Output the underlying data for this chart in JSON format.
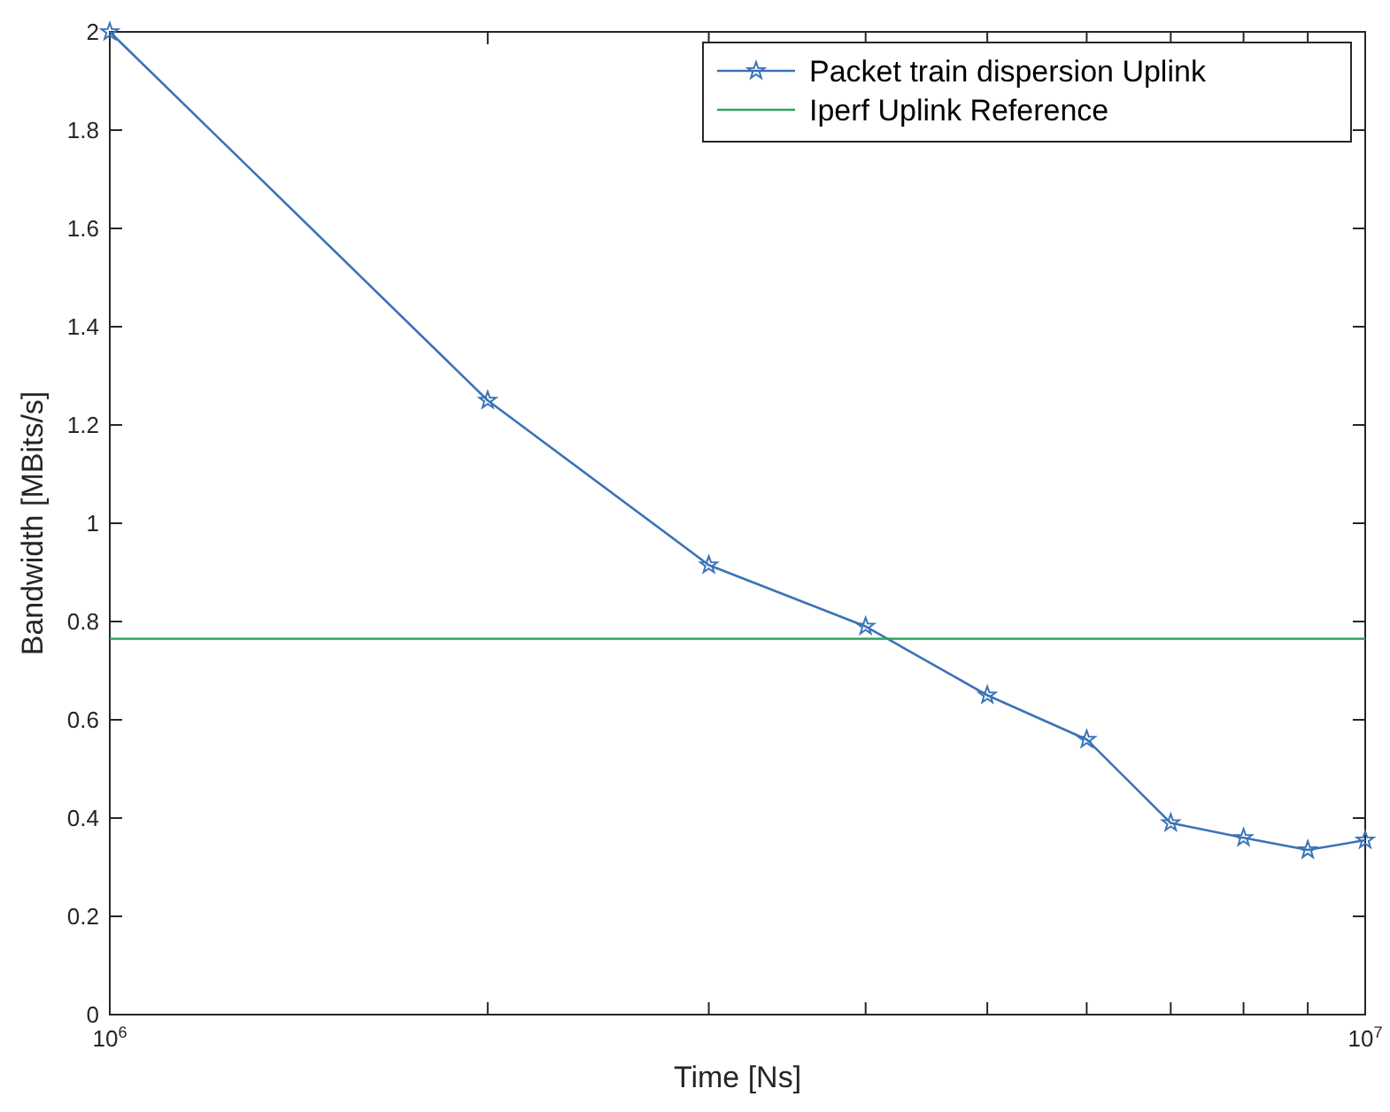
{
  "chart_data": {
    "type": "line",
    "xlabel": "Time [Ns]",
    "ylabel": "Bandwidth [MBits/s]",
    "log": "x",
    "xlim": [
      1000000,
      10000000
    ],
    "ylim": [
      0,
      2
    ],
    "xticks": [
      {
        "value": 1000000,
        "label": "10$^{6}$"
      },
      {
        "value": 2000000,
        "label": null
      },
      {
        "value": 3000000,
        "label": null
      },
      {
        "value": 4000000,
        "label": null
      },
      {
        "value": 5000000,
        "label": null
      },
      {
        "value": 6000000,
        "label": null
      },
      {
        "value": 7000000,
        "label": null
      },
      {
        "value": 8000000,
        "label": null
      },
      {
        "value": 9000000,
        "label": null
      },
      {
        "value": 10000000,
        "label": "10$^{7}$"
      }
    ],
    "yticks": [
      0,
      0.2,
      0.4,
      0.6,
      0.8,
      1,
      1.2,
      1.4,
      1.6,
      1.8,
      2
    ],
    "grid": false,
    "legend": "top right",
    "series": [
      {
        "name": "Packet train dispersion Uplink",
        "color": "#3a73b8",
        "marker": "star",
        "x": [
          1000000,
          2000000,
          3000000,
          4000000,
          5000000,
          6000000,
          7000000,
          8000000,
          9000000,
          10000000
        ],
        "values": [
          2.0,
          1.25,
          0.915,
          0.79,
          0.65,
          0.56,
          0.39,
          0.36,
          0.335,
          0.355
        ]
      },
      {
        "name": "Iperf Uplink Reference",
        "color": "#2ca25f",
        "marker": "none",
        "x": [
          1000000,
          10000000
        ],
        "values": [
          0.765,
          0.765
        ]
      }
    ]
  }
}
